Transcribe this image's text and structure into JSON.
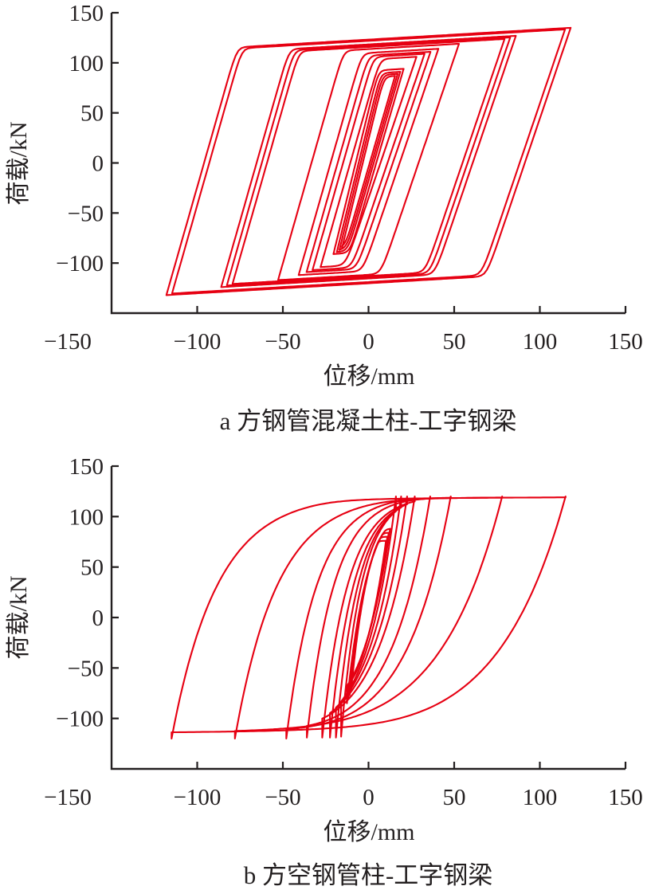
{
  "page": {
    "background": "#ffffff",
    "axis_color": "#231f20",
    "figure_kind": "cyclic-loading hysteresis curves, two stacked subplots"
  },
  "chart_data": [
    {
      "id": "a",
      "type": "line",
      "subtype": "hysteresis-loops",
      "title": "a 方钢管混凝土柱-工字钢梁",
      "xlabel": "位移/mm",
      "ylabel": "荷载/kN",
      "x_unit": "mm",
      "y_unit": "kN",
      "xlim": [
        -150,
        150
      ],
      "ylim": [
        -150,
        150
      ],
      "x_ticks": [
        -150,
        -100,
        -50,
        0,
        50,
        100,
        150
      ],
      "y_ticks": [
        150,
        100,
        50,
        0,
        -50,
        -100
      ],
      "grid": false,
      "legend": "none",
      "line_color": "#e60012",
      "max_load_kN": 135,
      "min_load_kN": -133,
      "max_disp_mm": 122,
      "min_disp_mm": -118,
      "shape": {
        "model": "bilinear-round",
        "hardening_slope": 0.1,
        "corner_round_top": 8,
        "corner_round_bottom": 8,
        "desc_lean_factor": 0.84
      },
      "cycle_step": {
        "amp": 3.3,
        "peak": 1.6
      },
      "loops": [
        {
          "amp_mm": 15.5,
          "peak_kN": 87,
          "peak_neg_kN": 85,
          "reload_stiffness": 7,
          "cycles": 1,
          "filled": true
        },
        {
          "amp_mm": 17,
          "peak_kN": 89,
          "peak_neg_kN": 87,
          "reload_stiffness": 7,
          "cycles": 1
        },
        {
          "amp_mm": 18.5,
          "peak_kN": 91,
          "peak_neg_kN": 89,
          "reload_stiffness": 7,
          "cycles": 1
        },
        {
          "amp_mm": 20.5,
          "peak_kN": 94,
          "peak_neg_kN": 91,
          "reload_stiffness": 7,
          "cycles": 1
        },
        {
          "amp_mm": 28,
          "peak_kN": 106,
          "peak_neg_kN": 104,
          "reload_stiffness": 6,
          "cycles": 1
        },
        {
          "amp_mm": 32.7,
          "peak_kN": 109,
          "peak_neg_kN": 107,
          "reload_stiffness": 6,
          "cycles": 1
        },
        {
          "amp_mm": 36.2,
          "peak_kN": 111,
          "peak_neg_kN": 109,
          "reload_stiffness": 6,
          "cycles": 1
        },
        {
          "amp_mm": 40.8,
          "peak_kN": 114,
          "peak_neg_kN": 112,
          "reload_stiffness": 6,
          "cycles": 1
        },
        {
          "amp_mm": 52.8,
          "peak_kN": 119,
          "peak_neg_kN": 117,
          "reload_stiffness": 6,
          "cycles": 1
        },
        {
          "amp_mm": 86,
          "peak_kN": 127,
          "peak_neg_kN": 124,
          "reload_stiffness": 6,
          "cycles": 3
        },
        {
          "amp_mm": 118,
          "peak_kN": 135,
          "peak_neg_kN": 132,
          "reload_stiffness": 6,
          "cycles": 2
        }
      ]
    },
    {
      "id": "b",
      "type": "line",
      "subtype": "hysteresis-loops",
      "title": "b 方空钢管柱-工字钢梁",
      "xlabel": "位移/mm",
      "ylabel": "荷载/kN",
      "x_unit": "mm",
      "y_unit": "kN",
      "xlim": [
        -150,
        150
      ],
      "ylim": [
        -150,
        150
      ],
      "x_ticks": [
        -150,
        -100,
        -50,
        0,
        50,
        100,
        150
      ],
      "y_ticks": [
        150,
        100,
        50,
        0,
        -50,
        -100
      ],
      "grid": false,
      "legend": "none",
      "line_color": "#e60012",
      "max_load_kN": 120,
      "min_load_kN": -120,
      "max_disp_mm": 115,
      "min_disp_mm": -115,
      "shape": {
        "model": "exp-saturating",
        "asymptote_kN": 122,
        "plateau_kN": 120,
        "hardening_slope": 0.012,
        "corner_round_top": 2.5,
        "corner_round_bottom": 10,
        "desc_lean_factor": 1.45
      },
      "cycle_step": {
        "amp": 0.8,
        "peak": 0.8
      },
      "loops": [
        {
          "amp_mm": 10.2,
          "peak_kN": 76,
          "peak_neg_kN": 73,
          "rise_mm": 11,
          "cycles": 1,
          "filled": true
        },
        {
          "amp_mm": 11,
          "peak_kN": 80,
          "peak_neg_kN": 77,
          "rise_mm": 11.5,
          "cycles": 1
        },
        {
          "amp_mm": 11.8,
          "peak_kN": 84,
          "peak_neg_kN": 81,
          "rise_mm": 12,
          "cycles": 1
        },
        {
          "amp_mm": 12.6,
          "peak_kN": 88,
          "peak_neg_kN": 85,
          "rise_mm": 12.5,
          "cycles": 1
        },
        {
          "amp_mm": 16,
          "peak_kN": 120,
          "peak_neg_kN": 118,
          "rise_mm": 12,
          "cycles": 1
        },
        {
          "amp_mm": 19,
          "peak_kN": 120,
          "peak_neg_kN": 119,
          "rise_mm": 13,
          "cycles": 1
        },
        {
          "amp_mm": 22.5,
          "peak_kN": 120,
          "peak_neg_kN": 119,
          "rise_mm": 14,
          "cycles": 1
        },
        {
          "amp_mm": 27,
          "peak_kN": 120,
          "peak_neg_kN": 119,
          "rise_mm": 15,
          "cycles": 1
        },
        {
          "amp_mm": 36,
          "peak_kN": 120,
          "peak_neg_kN": 119,
          "rise_mm": 16,
          "cycles": 1
        },
        {
          "amp_mm": 48,
          "peak_kN": 120,
          "peak_neg_kN": 120,
          "rise_mm": 18,
          "cycles": 1
        },
        {
          "amp_mm": 78,
          "peak_kN": 120,
          "peak_neg_kN": 120,
          "rise_mm": 25,
          "cycles": 1
        },
        {
          "amp_mm": 115,
          "peak_kN": 120,
          "peak_neg_kN": 120,
          "rise_mm": 27,
          "cycles": 1
        }
      ]
    }
  ]
}
